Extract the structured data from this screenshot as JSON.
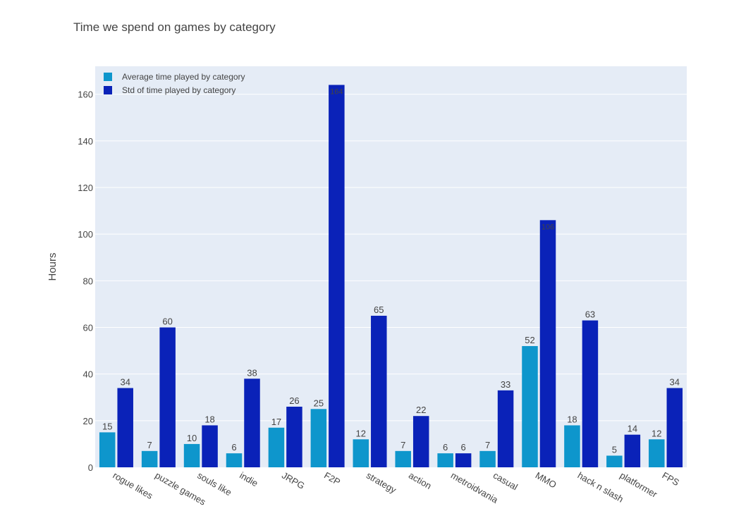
{
  "chart_data": {
    "type": "bar",
    "title": "Time we spend on games by category",
    "xlabel": "",
    "ylabel": "Hours",
    "ylim": [
      0,
      172
    ],
    "yticks": [
      0,
      20,
      40,
      60,
      80,
      100,
      120,
      140,
      160
    ],
    "grid": true,
    "legend_position": "top-left",
    "categories": [
      "rogue likes",
      "puzzle games",
      "souls like",
      "indie",
      "JRPG",
      "F2P",
      "strategy",
      "action",
      "metroidvania",
      "casual",
      "MMO",
      "hack n slash",
      "platformer",
      "FPS"
    ],
    "series": [
      {
        "name": "Average time played by category",
        "color": "#0e96cc",
        "values": [
          15,
          7,
          10,
          6,
          17,
          25,
          12,
          7,
          6,
          7,
          52,
          18,
          5,
          12
        ]
      },
      {
        "name": "Std of time played by category",
        "color": "#0a22b8",
        "values": [
          34,
          60,
          18,
          38,
          26,
          164,
          65,
          22,
          6,
          33,
          106,
          63,
          14,
          34
        ]
      }
    ],
    "plot_background": "#e5ecf6"
  }
}
